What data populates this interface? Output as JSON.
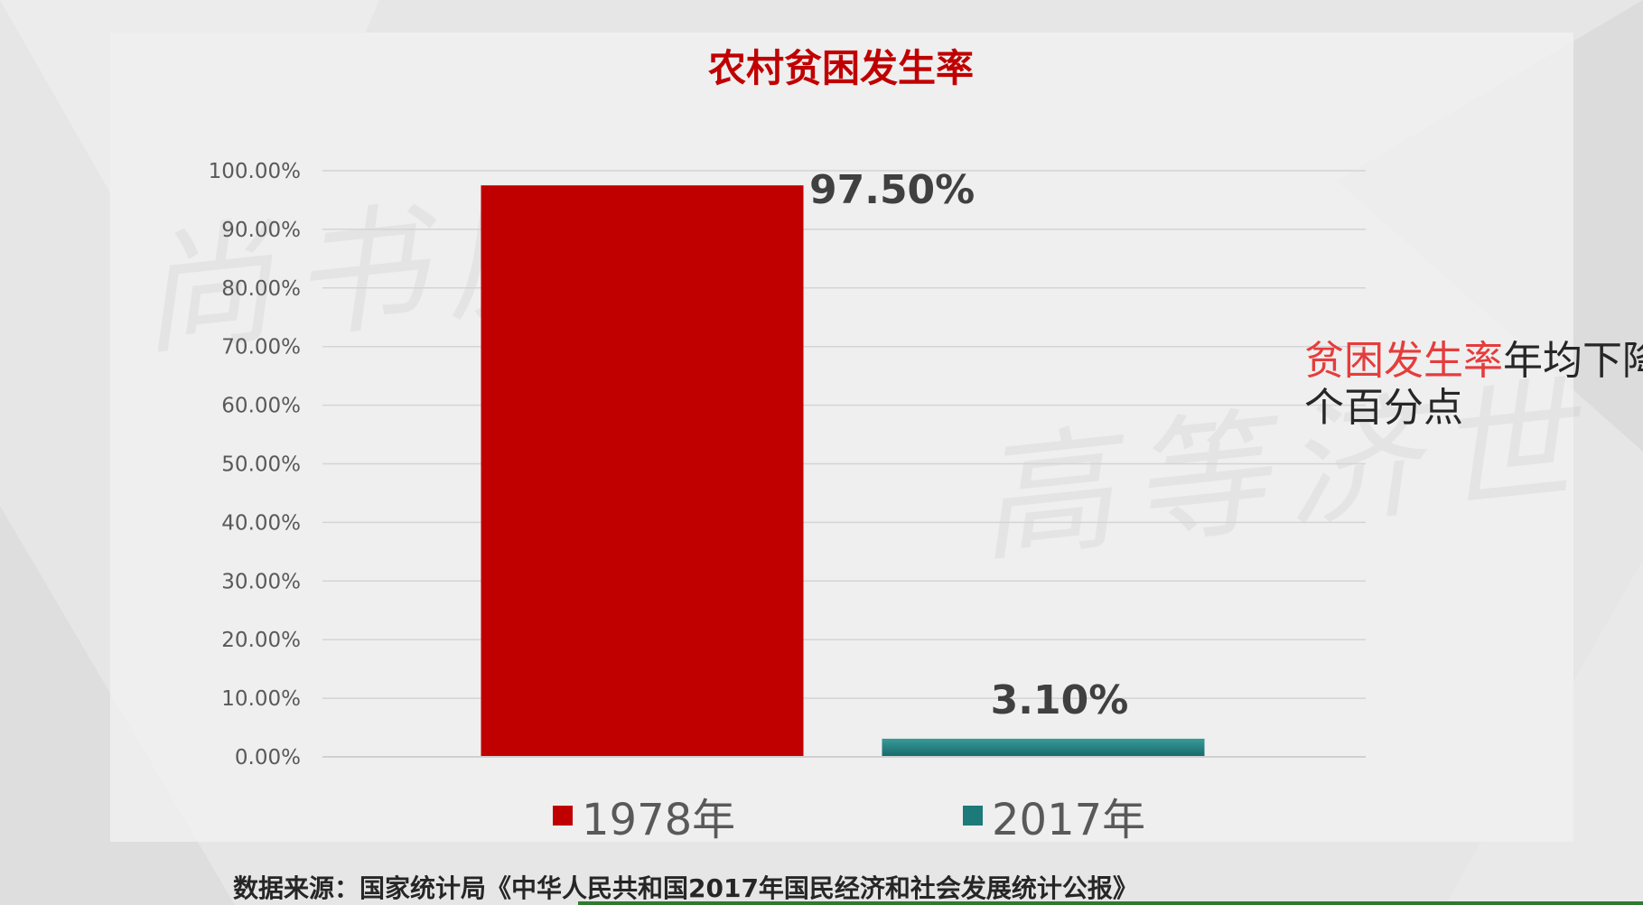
{
  "chart_data": {
    "type": "bar",
    "title": "农村贫困发生率",
    "categories": [
      "1978年",
      "2017年"
    ],
    "values": [
      97.5,
      3.1
    ],
    "value_labels": [
      "97.50%",
      "3.10%"
    ],
    "colors": [
      "#c00000",
      "#1d7a7a"
    ],
    "ylim": [
      0,
      100
    ],
    "y_ticks": [
      "0.00%",
      "10.00%",
      "20.00%",
      "30.00%",
      "40.00%",
      "50.00%",
      "60.00%",
      "70.00%",
      "80.00%",
      "90.00%",
      "100.00%"
    ],
    "grid": true,
    "legend_position": "bottom",
    "xlabel": "",
    "ylabel": ""
  },
  "annotation": {
    "highlight": "贫困发生率",
    "rest": "年均下降",
    "line2": "个百分点"
  },
  "source": "数据来源：国家统计局《中华人民共和国2017年国民经济和社会发展统计公报》",
  "watermarks": [
    "尚书房",
    "高等济世"
  ]
}
